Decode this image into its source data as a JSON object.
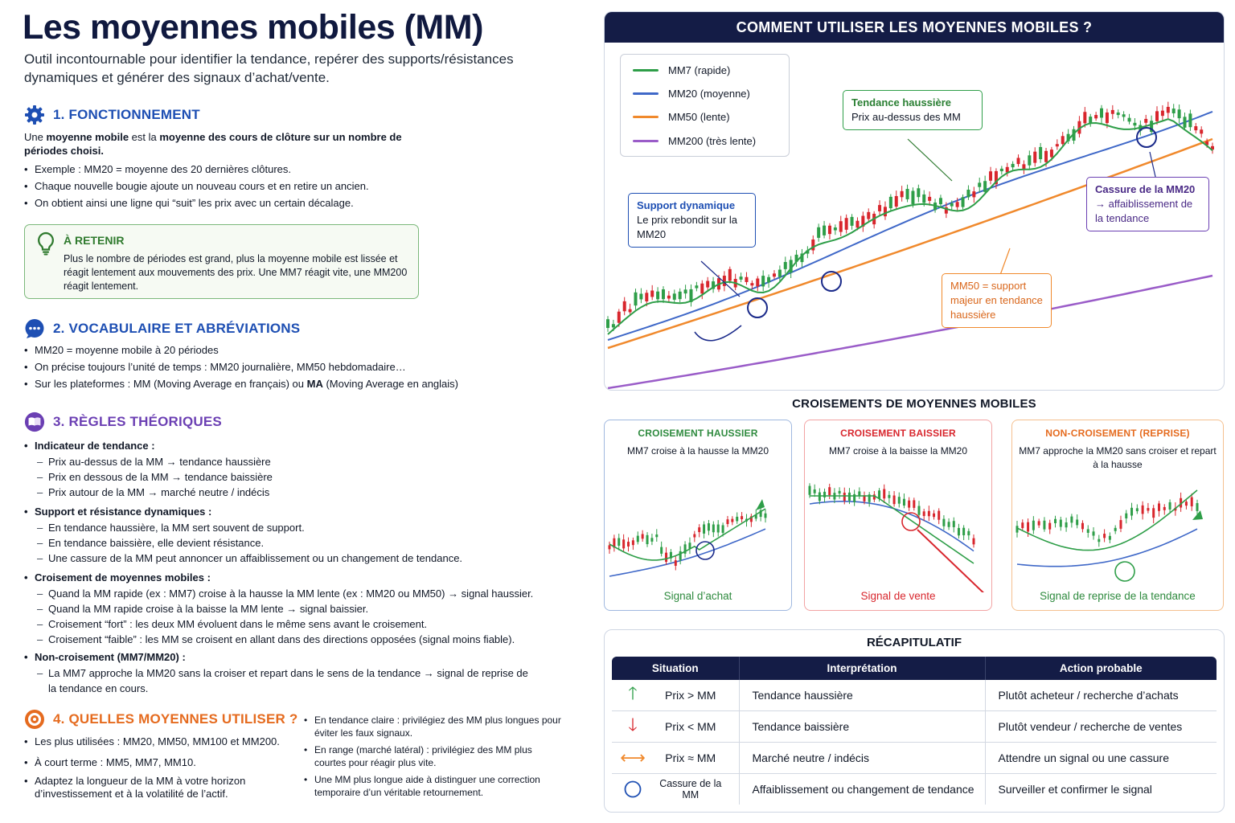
{
  "title": "Les moyennes mobiles (MM)",
  "intro": "Outil incontournable pour identifier la tendance, repérer des supports/résistances dynamiques et générer des signaux d’achat/vente.",
  "section1": {
    "heading": "1. FONCTIONNEMENT",
    "definition_a": "Une ",
    "definition_b": "moyenne mobile",
    "definition_c": " est la ",
    "definition_d": "moyenne des cours de clôture sur un nombre de périodes choisi.",
    "bullets": [
      "Exemple : MM20 = moyenne des 20 dernières clôtures.",
      "Chaque nouvelle bougie ajoute un nouveau cours et en retire un ancien.",
      "On obtient ainsi une ligne qui “suit” les prix avec un certain décalage."
    ],
    "retain_title": "À RETENIR",
    "retain_text": "Plus le nombre de périodes est grand, plus la moyenne mobile est lissée et réagit lentement aux mouvements des prix. Une MM7 réagit vite, une MM200 réagit lentement."
  },
  "section2": {
    "heading": "2. VOCABULAIRE ET ABRÉVIATIONS",
    "b1": "MM20 = moyenne mobile à 20 périodes",
    "b2": "On précise toujours l’unité de temps : MM20 journalière, MM50 hebdomadaire…",
    "b3_a": "Sur les plateformes : MM (Moving Average en français) ou ",
    "b3_b": "MA",
    "b3_c": " (Moving Average en anglais)"
  },
  "section3": {
    "heading": "3. RÈGLES THÉORIQUES",
    "g1_title": "Indicateur de tendance :",
    "g1": [
      "Prix au-dessus de la MM → tendance haussière",
      "Prix en dessous de la MM → tendance baissière",
      "Prix autour de la MM → marché neutre / indécis"
    ],
    "g2_title": "Support et résistance dynamiques :",
    "g2": [
      "En tendance haussière, la MM sert souvent de support.",
      "En tendance baissière, elle devient résistance.",
      "Une cassure de la MM peut annoncer un affaiblissement ou un changement de tendance."
    ],
    "g3_title": "Croisement de moyennes mobiles :",
    "g3": [
      "Quand la MM rapide (ex : MM7) croise à la hausse la MM lente (ex : MM20 ou MM50) → signal haussier.",
      "Quand la MM rapide croise à la baisse la MM lente → signal baissier.",
      "Croisement “fort” : les deux MM évoluent dans le même sens avant le croisement.",
      "Croisement “faible” : les MM se croisent en allant dans des directions opposées (signal moins fiable)."
    ],
    "g4_title": "Non-croisement (MM7/MM20) :",
    "g4": [
      "La MM7 approche la MM20 sans la croiser et repart dans le sens de la tendance → signal de reprise de la tendance en cours."
    ]
  },
  "section4": {
    "heading": "4. QUELLES MOYENNES UTILISER ?",
    "left": [
      "Les plus utilisées : MM20, MM50, MM100 et MM200.",
      "À court terme : MM5, MM7, MM10.",
      "Adaptez la longueur de la MM à votre horizon d’investissement et à la volatilité de l’actif."
    ],
    "right": [
      "En tendance claire : privilégiez des MM plus longues pour éviter les faux signaux.",
      "En range (marché latéral) : privilégiez des MM plus courtes pour réagir plus vite.",
      "Une MM plus longue aide à distinguer une correction temporaire d’un véritable retournement."
    ]
  },
  "panel": {
    "title": "COMMENT UTILISER LES MOYENNES MOBILES ?",
    "legend": [
      {
        "label": "MM7 (rapide)",
        "color": "#2e9e48"
      },
      {
        "label": "MM20 (moyenne)",
        "color": "#3f68c8"
      },
      {
        "label": "MM50 (lente)",
        "color": "#f0892c"
      },
      {
        "label": "MM200 (très lente)",
        "color": "#9a5cc8"
      }
    ],
    "callout_trend_1": "Tendance haussière",
    "callout_trend_2": "Prix au-dessus des MM",
    "callout_support_1": "Support dynamique",
    "callout_support_2": "Le prix rebondit sur la MM20",
    "callout_break_1": "Cassure de la MM20",
    "callout_break_2": "→ affaiblissement de la tendance",
    "callout_mm50": "MM50 = support majeur en tendance haussière"
  },
  "crossings": {
    "title": "CROISEMENTS DE MOYENNES MOBILES",
    "cards": [
      {
        "title": "CROISEMENT HAUSSIER",
        "sub": "MM7 croise à la hausse la MM20",
        "footer": "Signal d’achat",
        "color": "#2e8a3e",
        "border": "#9fb8df"
      },
      {
        "title": "CROISEMENT BAISSIER",
        "sub": "MM7 croise à la baisse la MM20",
        "footer": "Signal de vente",
        "color": "#d8262d",
        "border": "#f2a3a3"
      },
      {
        "title": "NON-CROISEMENT (REPRISE)",
        "sub": "MM7 approche la MM20 sans croiser et repart à la hausse",
        "footer": "Signal de reprise de la tendance",
        "color": "#e56b1f",
        "border": "#f5c08f"
      }
    ]
  },
  "recap": {
    "title": "RÉCAPITULATIF",
    "headers": [
      "Situation",
      "Interprétation",
      "Action probable"
    ],
    "rows": [
      {
        "icon": "up-arrow-icon",
        "situation": "Prix > MM",
        "interp": "Tendance haussière",
        "action": "Plutôt acheteur / recherche d’achats"
      },
      {
        "icon": "down-arrow-icon",
        "situation": "Prix < MM",
        "interp": "Tendance baissière",
        "action": "Plutôt vendeur / recherche de ventes"
      },
      {
        "icon": "left-right-arrow-icon",
        "situation": "Prix ≈ MM",
        "interp": "Marché neutre / indécis",
        "action": "Attendre un signal ou une cassure"
      },
      {
        "icon": "circle-icon",
        "situation": "Cassure de la MM",
        "interp": "Affaiblissement ou changement de tendance",
        "action": "Surveiller et confirmer le signal"
      }
    ]
  },
  "colors": {
    "navy": "#141c46",
    "blue": "#1e4fb3",
    "purple": "#6b3fb3",
    "orange": "#e56b1f",
    "green": "#2e9e48",
    "red": "#d8262d"
  }
}
